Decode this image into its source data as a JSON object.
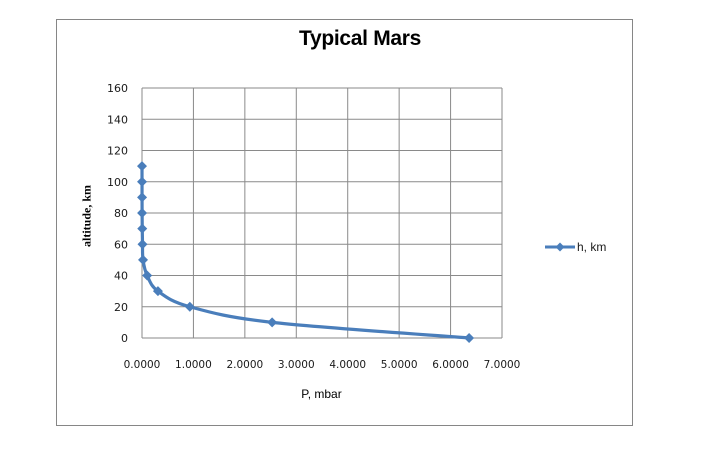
{
  "chart_data": {
    "type": "scatter",
    "title": "Typical Mars",
    "xlabel": "P, mbar",
    "ylabel": "altitude,  km",
    "xlim": [
      0,
      7
    ],
    "ylim": [
      0,
      160
    ],
    "x_ticks": [
      "0.0000",
      "1.0000",
      "2.0000",
      "3.0000",
      "4.0000",
      "5.0000",
      "6.0000",
      "7.0000"
    ],
    "y_ticks": [
      "0",
      "20",
      "40",
      "60",
      "80",
      "100",
      "120",
      "140",
      "160"
    ],
    "grid": true,
    "legend_position": "right",
    "series": [
      {
        "name": "h, km",
        "color": "#4a7ebb",
        "marker": "diamond",
        "smoothed_line": true,
        "x": [
          6.36,
          2.53,
          0.93,
          0.31,
          0.1,
          0.02,
          0.01,
          0.005,
          0.002,
          0.001,
          0.0005,
          0.0002
        ],
        "y": [
          0,
          10,
          20,
          30,
          40,
          50,
          60,
          70,
          80,
          90,
          100,
          110
        ]
      }
    ]
  },
  "legend": {
    "label": "h, km"
  }
}
